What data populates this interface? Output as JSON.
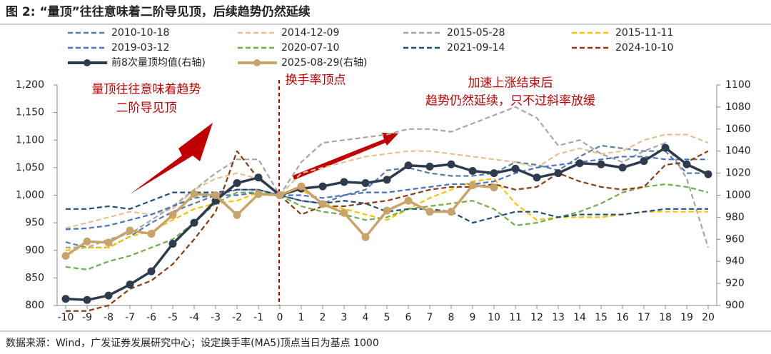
{
  "chart_data": {
    "type": "line",
    "title": "图 2: “量顶”往往意味着二阶导见顶，后续趋势仍然延续",
    "source": "数据来源：Wind，广发证券发展研究中心；设定换手率(MA5)顶点当日为基点 1000",
    "annotations": [
      "量顶往往意味着趋势",
      "二阶导见顶",
      "换手率顶点",
      "加速上涨结束后",
      "趋势仍然延续，只不过斜率放缓"
    ],
    "x": [
      -10,
      -9,
      -8,
      -7,
      -6,
      -5,
      -4,
      -3,
      -2,
      -1,
      0,
      1,
      2,
      3,
      4,
      5,
      6,
      7,
      8,
      9,
      10,
      11,
      12,
      13,
      14,
      15,
      16,
      17,
      18,
      19,
      20
    ],
    "xlim": [
      -10,
      20
    ],
    "xticks": [
      -10,
      -9,
      -8,
      -7,
      -6,
      -5,
      -4,
      -3,
      -2,
      -1,
      0,
      1,
      2,
      3,
      4,
      5,
      6,
      7,
      8,
      9,
      10,
      11,
      12,
      13,
      14,
      15,
      16,
      17,
      18,
      19,
      20
    ],
    "ylim": [
      800,
      1200
    ],
    "yticks": [
      800,
      850,
      900,
      950,
      {
        "value": 1000,
        "label": "1,000"
      },
      {
        "value": 1050,
        "label": "1,050"
      },
      {
        "value": 1100,
        "label": "1,100"
      },
      {
        "value": 1150,
        "label": "1,150"
      },
      {
        "value": 1200,
        "label": "1,200"
      }
    ],
    "y2lim": [
      900,
      1100
    ],
    "y2ticks": [
      900,
      920,
      940,
      960,
      980,
      1000,
      1020,
      1040,
      1060,
      1080,
      1100
    ],
    "series": [
      {
        "name": "2010-10-18",
        "color": "#5a7ba0",
        "style": "dashed",
        "values": [
          915,
          905,
          905,
          925,
          950,
          970,
          985,
          1000,
          1010,
          1010,
          1000,
          990,
          985,
          1000,
          1010,
          1045,
          1050,
          1040,
          1035,
          1035,
          1040,
          1060,
          1055,
          1045,
          1070,
          1090,
          1085,
          1080,
          1080,
          1040,
          1040
        ]
      },
      {
        "name": "2014-12-09",
        "color": "#e6c08e",
        "style": "dashed",
        "values": [
          940,
          950,
          960,
          970,
          965,
          975,
          1010,
          1030,
          1040,
          1030,
          1000,
          1040,
          1050,
          1060,
          1070,
          1075,
          1080,
          1080,
          1075,
          1070,
          1065,
          1060,
          1050,
          1075,
          1085,
          1075,
          1080,
          1100,
          1110,
          1110,
          1095
        ]
      },
      {
        "name": "2015-05-28",
        "color": "#a6a6a6",
        "style": "dashed",
        "values": [
          905,
          905,
          920,
          930,
          955,
          980,
          1010,
          1040,
          1065,
          1065,
          1000,
          1060,
          1095,
          1100,
          1105,
          1110,
          1120,
          1120,
          1115,
          1130,
          1145,
          1160,
          1140,
          1090,
          1100,
          1075,
          1060,
          1080,
          1095,
          1030,
          905
        ]
      },
      {
        "name": "2015-11-11",
        "color": "#ffc000",
        "style": "dashed",
        "values": [
          900,
          905,
          905,
          925,
          935,
          955,
          975,
          985,
          990,
          1005,
          1000,
          1010,
          985,
          975,
          965,
          955,
          975,
          995,
          1010,
          1025,
          1030,
          985,
          955,
          960,
          960,
          960,
          965,
          970,
          970,
          970,
          970
        ]
      },
      {
        "name": "2019-03-12",
        "color": "#4472c4",
        "style": "dashed",
        "values": [
          938,
          940,
          945,
          955,
          965,
          980,
          995,
          1000,
          1000,
          1005,
          1000,
          1000,
          995,
          1000,
          1005,
          1005,
          1010,
          1015,
          1020,
          1020,
          1025,
          1040,
          1050,
          1055,
          1060,
          1065,
          1070,
          1070,
          1065,
          1065,
          1065
        ]
      },
      {
        "name": "2020-07-10",
        "color": "#70ad47",
        "style": "dashed",
        "values": [
          870,
          865,
          880,
          890,
          905,
          920,
          950,
          985,
          1005,
          1005,
          1000,
          980,
          970,
          965,
          955,
          960,
          975,
          980,
          985,
          990,
          975,
          945,
          950,
          960,
          970,
          985,
          1005,
          1015,
          1020,
          1015,
          1005
        ]
      },
      {
        "name": "2021-09-14",
        "color": "#1f4e79",
        "style": "dashed",
        "values": [
          975,
          975,
          980,
          975,
          990,
          1005,
          1005,
          1005,
          1010,
          1010,
          1000,
          990,
          985,
          990,
          985,
          970,
          975,
          975,
          970,
          950,
          960,
          970,
          970,
          960,
          965,
          965,
          965,
          970,
          975,
          975,
          975
        ]
      },
      {
        "name": "2024-10-10",
        "color": "#8b3a0f",
        "style": "dashed",
        "values": [
          790,
          790,
          800,
          830,
          845,
          875,
          920,
          970,
          1080,
          1030,
          1000,
          965,
          980,
          980,
          985,
          990,
          1000,
          1010,
          1015,
          1015,
          1020,
          1010,
          1015,
          1040,
          1025,
          1015,
          1010,
          1015,
          1055,
          1060,
          1080
        ]
      },
      {
        "name": "前8次量顶均值(右轴)",
        "color": "#2e3a4e",
        "style": "solid",
        "axis": "y2",
        "values": [
          906,
          905,
          909,
          919,
          931,
          956,
          975,
          995,
          1011,
          1016,
          1000,
          1006,
          1008,
          1012,
          1011,
          1014,
          1027,
          1026,
          1028,
          1022,
          1020,
          1024,
          1016,
          1020,
          1029,
          1028,
          1025,
          1031,
          1043,
          1028,
          1019
        ]
      },
      {
        "name": "2025-08-29(右轴)",
        "color": "#c9a46a",
        "style": "solid",
        "axis": "y2",
        "values": [
          945,
          958,
          957,
          968,
          965,
          982,
          1001,
          1000,
          982,
          1001,
          1000,
          1008,
          992,
          984,
          962,
          986,
          995,
          985,
          985,
          1009,
          1007,
          null,
          null,
          null,
          null,
          null,
          null,
          null,
          null,
          null,
          null
        ]
      }
    ]
  }
}
